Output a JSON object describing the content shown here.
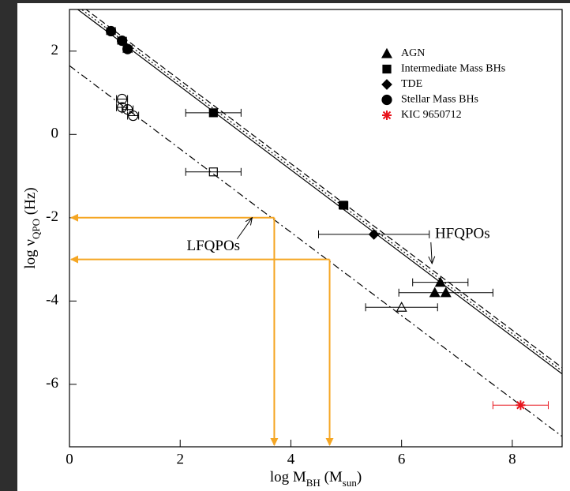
{
  "chart_data": {
    "type": "scatter",
    "x_label": [
      "log M",
      "BH",
      " (M",
      "sun",
      ")"
    ],
    "y_label": [
      "log ν",
      "QPO",
      " (Hz)"
    ],
    "xlim": [
      0,
      8.9
    ],
    "ylim": [
      -7.5,
      3
    ],
    "xticks": [
      0,
      2,
      4,
      6,
      8
    ],
    "yticks": [
      -6,
      -4,
      -2,
      0,
      2
    ],
    "series": [
      {
        "name": "AGN",
        "color": "#000000",
        "marker": "triangle",
        "x": [
          6.6,
          6.7,
          6.8,
          6.0
        ],
        "values": [
          -3.8,
          -3.55,
          -3.8,
          -4.15
        ],
        "xerr": [
          null,
          0.5,
          0.85,
          0.65
        ],
        "open": [
          false,
          false,
          false,
          true
        ]
      },
      {
        "name": "Intermediate Mass BHs",
        "color": "#000000",
        "marker": "square",
        "x": [
          2.6,
          2.6,
          4.95
        ],
        "values": [
          0.52,
          -0.9,
          -1.7
        ],
        "xerr": [
          0.5,
          0.5,
          0.08
        ],
        "open": [
          false,
          true,
          false
        ]
      },
      {
        "name": "TDE",
        "color": "#000000",
        "marker": "diamond",
        "x": [
          5.5
        ],
        "values": [
          -2.4
        ],
        "xerr": [
          1.0
        ],
        "open": [
          false
        ]
      },
      {
        "name": "Stellar Mass BHs",
        "color": "#000000",
        "marker": "circle",
        "x": [
          0.75,
          0.95,
          1.05,
          0.95,
          0.95,
          1.05,
          1.15
        ],
        "values": [
          2.48,
          2.25,
          2.05,
          0.85,
          0.65,
          0.6,
          0.45
        ],
        "xerr": [
          0.08,
          0.08,
          0.08,
          0.1,
          0.1,
          0.1,
          0.1
        ],
        "open": [
          false,
          false,
          false,
          true,
          true,
          true,
          true
        ]
      },
      {
        "name": "KIC 9650712",
        "color": "#e8141c",
        "marker": "star",
        "x": [
          8.15
        ],
        "values": [
          -6.5
        ],
        "xerr": [
          0.5
        ],
        "open": [
          false
        ]
      }
    ],
    "lines": [
      {
        "style": "dashed",
        "x": [
          0,
          8.9
        ],
        "values": [
          3.3,
          -5.6
        ]
      },
      {
        "style": "dotted",
        "x": [
          0,
          8.9
        ],
        "values": [
          3.22,
          -5.68
        ]
      },
      {
        "style": "solid",
        "x": [
          0,
          8.9
        ],
        "values": [
          3.15,
          -5.75
        ]
      },
      {
        "style": "dashdot",
        "x": [
          0,
          8.9
        ],
        "values": [
          1.65,
          -7.25
        ]
      }
    ],
    "guides": {
      "color": "#f5a623",
      "points": [
        {
          "x": 3.7,
          "y": -2
        },
        {
          "x": 4.7,
          "y": -3
        }
      ]
    },
    "annotations": [
      {
        "text": "LFQPOs",
        "x": 2.6,
        "y": -2.7,
        "arrow_to": [
          3.3,
          -2.0
        ]
      },
      {
        "text": "HFQPOs",
        "x": 7.1,
        "y": -2.4,
        "arrow_to": [
          6.55,
          -3.1
        ]
      }
    ]
  }
}
